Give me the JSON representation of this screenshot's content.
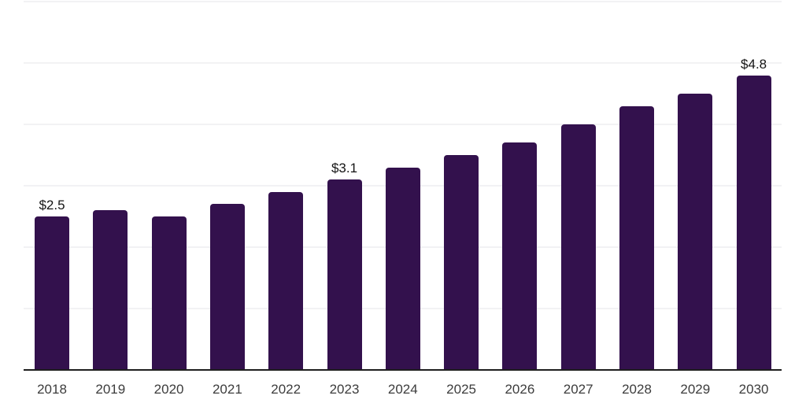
{
  "chart_data": {
    "type": "bar",
    "title": "",
    "xlabel": "",
    "ylabel": "",
    "categories": [
      "2018",
      "2019",
      "2020",
      "2021",
      "2022",
      "2023",
      "2024",
      "2025",
      "2026",
      "2027",
      "2028",
      "2029",
      "2030"
    ],
    "values": [
      2.5,
      2.6,
      2.5,
      2.7,
      2.9,
      3.1,
      3.3,
      3.5,
      3.7,
      4.0,
      4.3,
      4.5,
      4.8
    ],
    "bar_labels": [
      "$2.5",
      null,
      null,
      null,
      null,
      "$3.1",
      null,
      null,
      null,
      null,
      null,
      null,
      "$4.8"
    ],
    "ylim": [
      0,
      6
    ],
    "gridline_values": [
      1,
      2,
      3,
      4,
      5,
      6
    ],
    "grid": "horizontal-only",
    "legend": "none",
    "colors": {
      "bar": "#33114d",
      "axis_line": "#1e1e1e",
      "gridline": "#f2f2f4",
      "tick_text": "#3c3c3c",
      "bar_label_text": "#141414",
      "background": "#ffffff"
    }
  }
}
